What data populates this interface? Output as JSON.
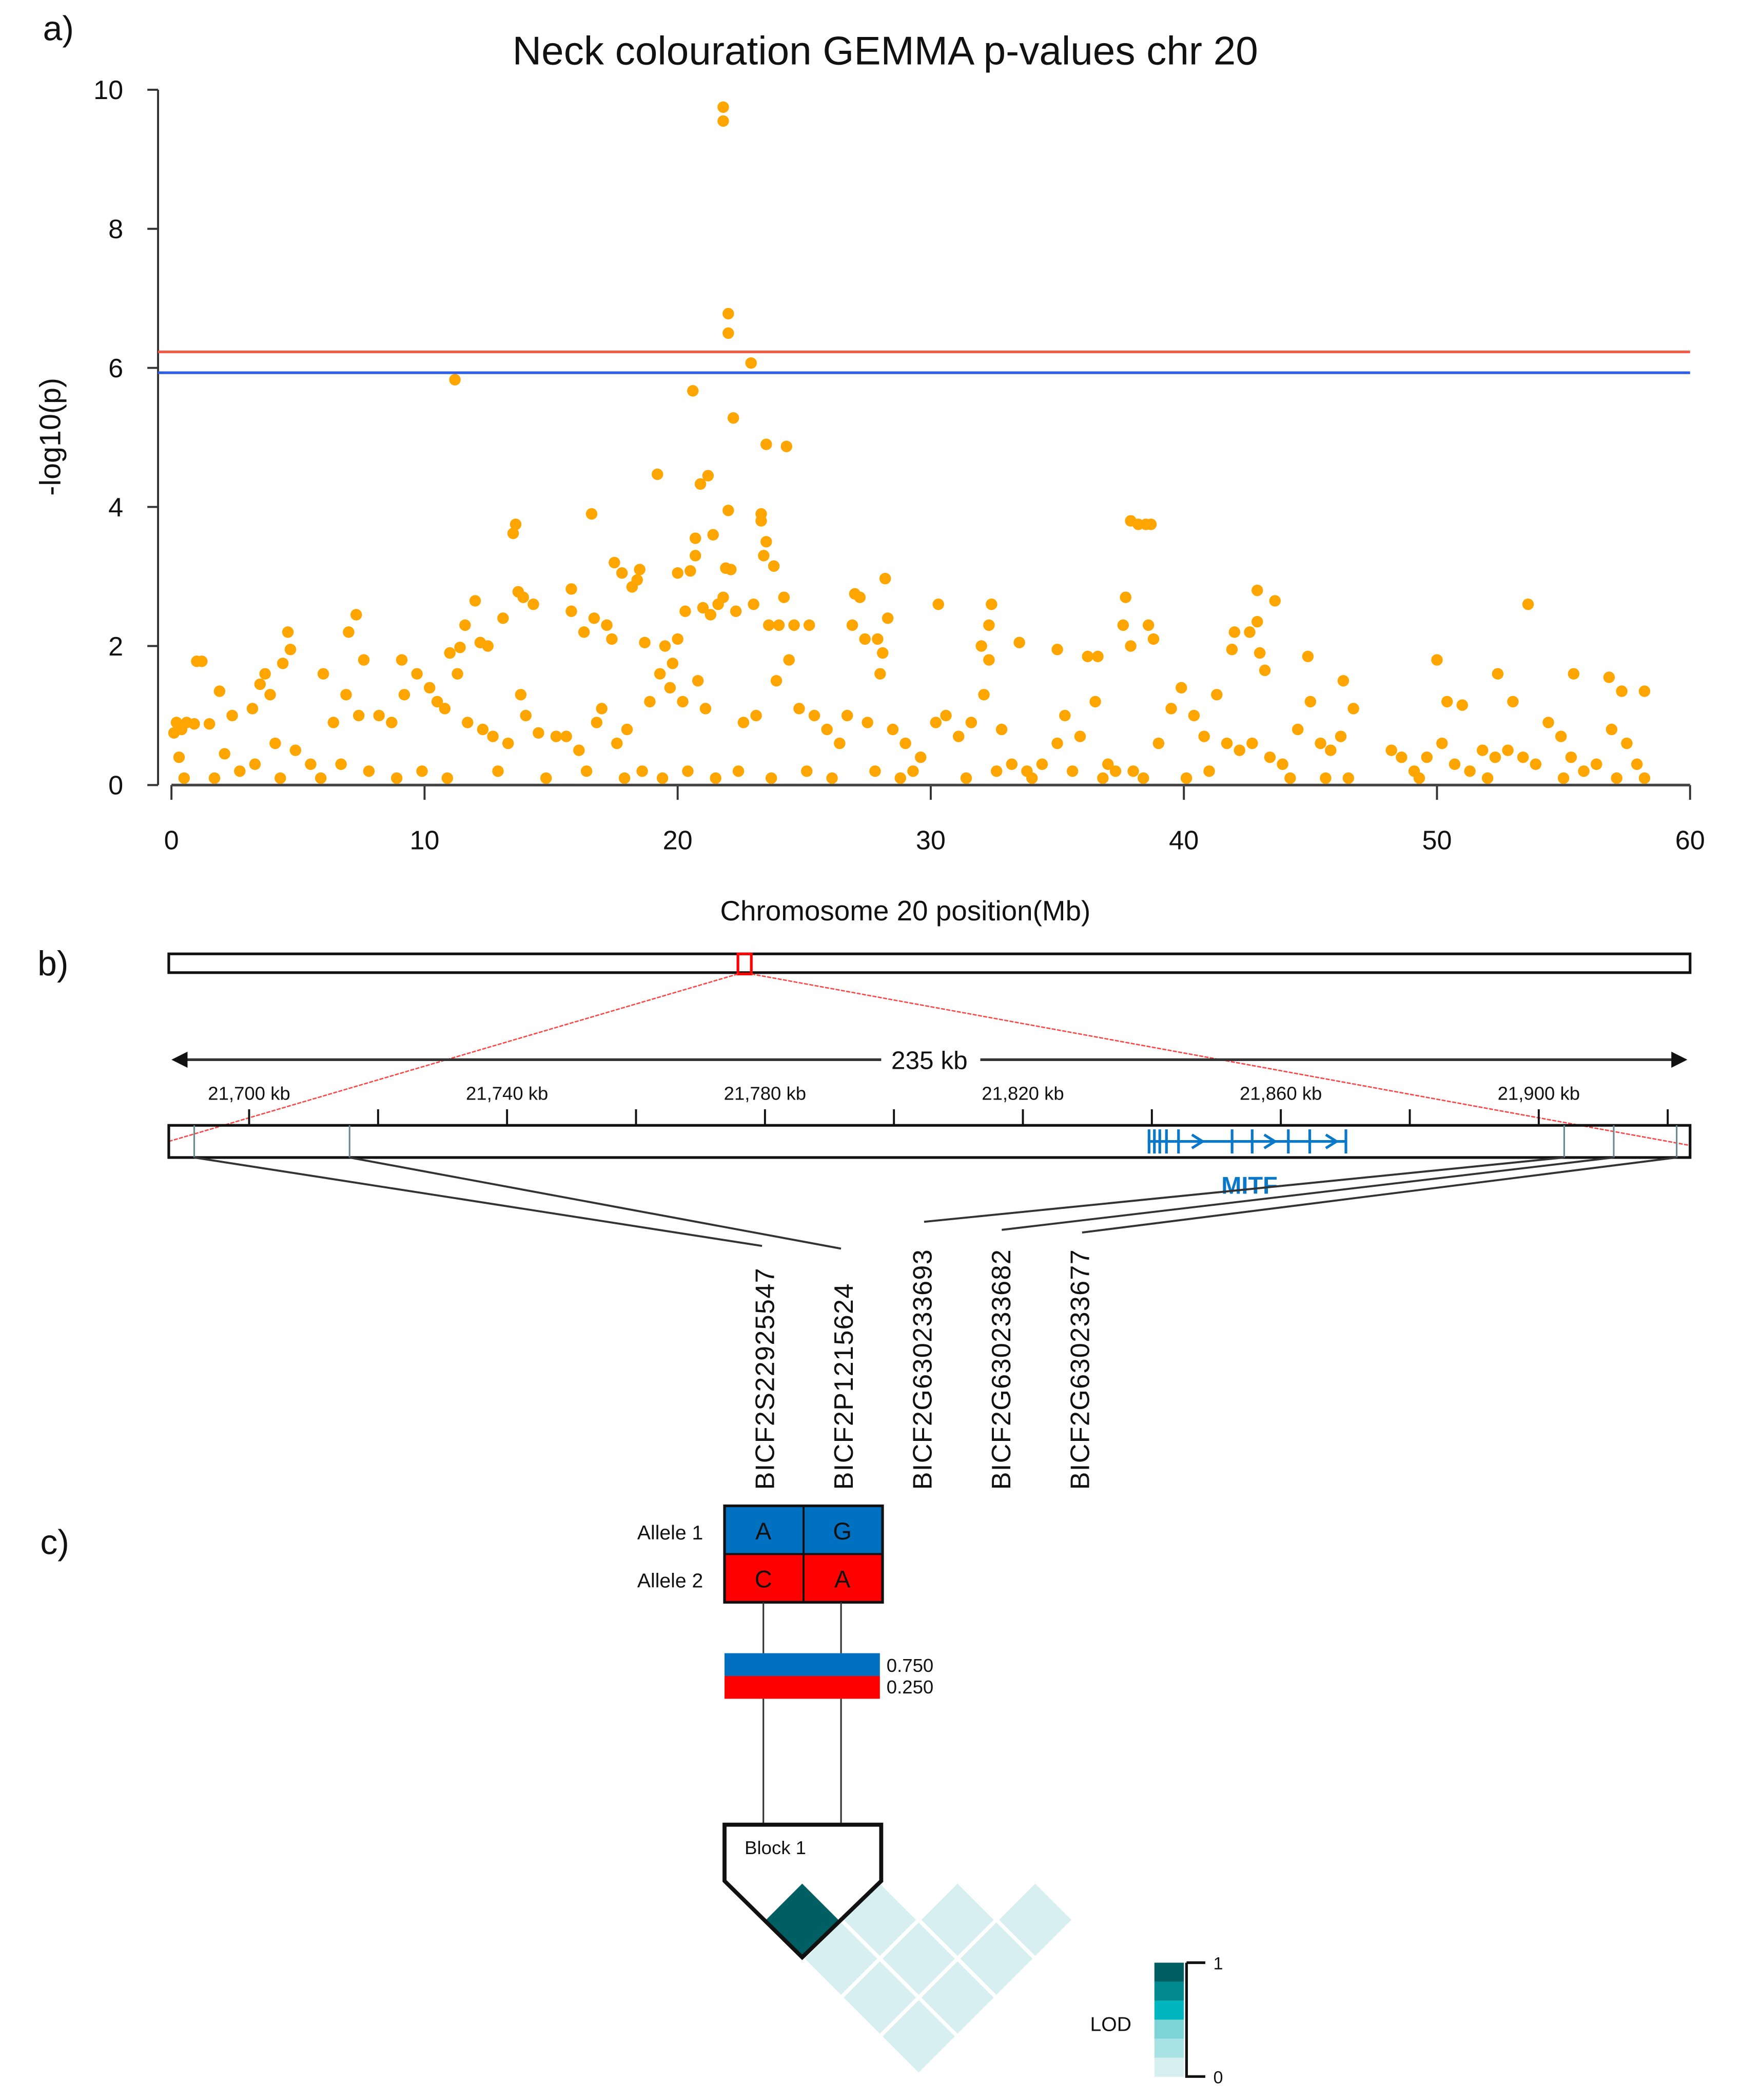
{
  "colors": {
    "points": "#ffa500",
    "red_line": "#f05a46",
    "blue_line": "#2f5fe8",
    "gene": "#0a78c8",
    "allele1": "#0070c0",
    "allele2": "#ff0000",
    "ld_dark": "#005f63",
    "ld_light": "#d7eff1"
  },
  "panels": {
    "a": "a)",
    "b": "b)",
    "c": "c)"
  },
  "chart_data": {
    "type": "scatter",
    "title": "Neck colouration GEMMA p-values chr 20",
    "xlabel": "Chromosome 20 position(Mb)",
    "ylabel": "-log10(p)",
    "xlim": [
      0,
      60
    ],
    "ylim": [
      0,
      10
    ],
    "xticks": [
      "0",
      "10",
      "20",
      "30",
      "40",
      "50",
      "60"
    ],
    "yticks": [
      "0",
      "2",
      "4",
      "6",
      "8",
      "10"
    ],
    "thresholds": [
      {
        "name": "red",
        "value": 6.23
      },
      {
        "name": "blue",
        "value": 5.93
      }
    ],
    "points": [
      [
        21.8,
        9.75
      ],
      [
        21.8,
        9.55
      ],
      [
        22.0,
        6.78
      ],
      [
        22.0,
        6.5
      ],
      [
        22.9,
        6.07
      ],
      [
        11.2,
        5.83
      ],
      [
        20.6,
        5.67
      ],
      [
        22.2,
        5.28
      ],
      [
        23.5,
        4.9
      ],
      [
        24.3,
        4.87
      ],
      [
        19.2,
        4.47
      ],
      [
        21.2,
        4.45
      ],
      [
        20.9,
        4.33
      ],
      [
        22.0,
        3.95
      ],
      [
        23.3,
        3.9
      ],
      [
        23.3,
        3.8
      ],
      [
        13.6,
        3.75
      ],
      [
        13.5,
        3.62
      ],
      [
        16.6,
        3.9
      ],
      [
        37.9,
        3.8
      ],
      [
        38.2,
        3.75
      ],
      [
        38.5,
        3.75
      ],
      [
        38.7,
        3.75
      ],
      [
        20.7,
        3.55
      ],
      [
        21.4,
        3.6
      ],
      [
        23.5,
        3.5
      ],
      [
        23.4,
        3.3
      ],
      [
        20.7,
        3.3
      ],
      [
        17.5,
        3.2
      ],
      [
        18.5,
        3.1
      ],
      [
        20.0,
        3.05
      ],
      [
        20.5,
        3.08
      ],
      [
        22.1,
        3.1
      ],
      [
        21.9,
        3.12
      ],
      [
        23.8,
        3.15
      ],
      [
        28.2,
        2.97
      ],
      [
        42.9,
        2.8
      ],
      [
        53.6,
        2.6
      ],
      [
        32.4,
        2.6
      ],
      [
        30.3,
        2.6
      ],
      [
        37.7,
        2.7
      ],
      [
        43.6,
        2.65
      ],
      [
        27.0,
        2.75
      ],
      [
        27.2,
        2.7
      ],
      [
        15.8,
        2.82
      ],
      [
        13.7,
        2.78
      ],
      [
        13.9,
        2.7
      ],
      [
        12.0,
        2.65
      ],
      [
        14.3,
        2.6
      ],
      [
        18.2,
        2.85
      ],
      [
        18.4,
        2.95
      ],
      [
        17.8,
        3.05
      ],
      [
        24.2,
        2.7
      ],
      [
        23.0,
        2.6
      ],
      [
        21.0,
        2.55
      ],
      [
        21.6,
        2.6
      ],
      [
        21.8,
        2.7
      ],
      [
        22.3,
        2.5
      ],
      [
        20.3,
        2.5
      ],
      [
        21.3,
        2.45
      ],
      [
        7.3,
        2.45
      ],
      [
        7.0,
        2.2
      ],
      [
        4.6,
        2.2
      ],
      [
        4.7,
        1.95
      ],
      [
        4.4,
        1.75
      ],
      [
        12.2,
        2.05
      ],
      [
        12.5,
        2.0
      ],
      [
        11.4,
        1.98
      ],
      [
        13.1,
        2.4
      ],
      [
        11.6,
        2.3
      ],
      [
        16.7,
        2.4
      ],
      [
        16.3,
        2.2
      ],
      [
        17.2,
        2.3
      ],
      [
        17.4,
        2.1
      ],
      [
        18.7,
        2.05
      ],
      [
        19.5,
        2.0
      ],
      [
        19.8,
        1.75
      ],
      [
        15.8,
        2.5
      ],
      [
        20.0,
        2.1
      ],
      [
        23.6,
        2.3
      ],
      [
        24.0,
        2.3
      ],
      [
        24.6,
        2.3
      ],
      [
        25.2,
        2.3
      ],
      [
        26.9,
        2.3
      ],
      [
        27.4,
        2.1
      ],
      [
        27.9,
        2.1
      ],
      [
        28.3,
        2.4
      ],
      [
        28.1,
        1.9
      ],
      [
        28.0,
        1.6
      ],
      [
        32.3,
        2.3
      ],
      [
        32.0,
        2.0
      ],
      [
        32.3,
        1.8
      ],
      [
        33.5,
        2.05
      ],
      [
        35.0,
        1.95
      ],
      [
        36.2,
        1.85
      ],
      [
        36.6,
        1.85
      ],
      [
        37.6,
        2.3
      ],
      [
        37.9,
        2.0
      ],
      [
        38.8,
        2.1
      ],
      [
        38.6,
        2.3
      ],
      [
        42.0,
        2.2
      ],
      [
        41.9,
        1.95
      ],
      [
        42.6,
        2.2
      ],
      [
        42.9,
        2.35
      ],
      [
        43.0,
        1.9
      ],
      [
        43.2,
        1.65
      ],
      [
        44.9,
        1.85
      ],
      [
        46.3,
        1.5
      ],
      [
        50.0,
        1.8
      ],
      [
        50.4,
        1.2
      ],
      [
        51.0,
        1.15
      ],
      [
        52.4,
        1.6
      ],
      [
        53.0,
        1.2
      ],
      [
        55.4,
        1.6
      ],
      [
        56.8,
        1.55
      ],
      [
        57.3,
        1.35
      ],
      [
        58.2,
        1.35
      ],
      [
        1.0,
        1.78
      ],
      [
        1.2,
        1.78
      ],
      [
        0.2,
        0.9
      ],
      [
        0.4,
        0.8
      ],
      [
        0.6,
        0.9
      ],
      [
        0.9,
        0.88
      ],
      [
        1.5,
        0.88
      ],
      [
        0.3,
        0.4
      ],
      [
        0.1,
        0.75
      ],
      [
        1.9,
        1.35
      ],
      [
        2.1,
        0.45
      ],
      [
        2.4,
        1.0
      ],
      [
        3.2,
        1.1
      ],
      [
        3.5,
        1.45
      ],
      [
        3.7,
        1.6
      ],
      [
        3.9,
        1.3
      ],
      [
        4.1,
        0.6
      ],
      [
        3.3,
        0.3
      ],
      [
        4.9,
        0.5
      ],
      [
        5.5,
        0.3
      ],
      [
        6.0,
        1.6
      ],
      [
        6.4,
        0.9
      ],
      [
        6.9,
        1.3
      ],
      [
        7.4,
        1.0
      ],
      [
        7.6,
        1.8
      ],
      [
        8.2,
        1.0
      ],
      [
        8.7,
        0.9
      ],
      [
        9.1,
        1.8
      ],
      [
        9.2,
        1.3
      ],
      [
        9.7,
        1.6
      ],
      [
        10.2,
        1.4
      ],
      [
        10.5,
        1.2
      ],
      [
        10.8,
        1.1
      ],
      [
        11.0,
        1.9
      ],
      [
        11.3,
        1.6
      ],
      [
        11.7,
        0.9
      ],
      [
        12.3,
        0.8
      ],
      [
        12.7,
        0.7
      ],
      [
        13.3,
        0.6
      ],
      [
        13.8,
        1.3
      ],
      [
        14.0,
        1.0
      ],
      [
        14.5,
        0.75
      ],
      [
        15.2,
        0.7
      ],
      [
        15.6,
        0.7
      ],
      [
        16.1,
        0.5
      ],
      [
        16.8,
        0.9
      ],
      [
        17.0,
        1.1
      ],
      [
        17.6,
        0.6
      ],
      [
        18.0,
        0.8
      ],
      [
        18.9,
        1.2
      ],
      [
        19.3,
        1.6
      ],
      [
        19.7,
        1.4
      ],
      [
        20.2,
        1.2
      ],
      [
        20.8,
        1.5
      ],
      [
        21.1,
        1.1
      ],
      [
        22.6,
        0.9
      ],
      [
        23.1,
        1.0
      ],
      [
        23.9,
        1.5
      ],
      [
        24.4,
        1.8
      ],
      [
        24.8,
        1.1
      ],
      [
        25.4,
        1.0
      ],
      [
        25.9,
        0.8
      ],
      [
        26.4,
        0.6
      ],
      [
        26.7,
        1.0
      ],
      [
        27.5,
        0.9
      ],
      [
        28.5,
        0.8
      ],
      [
        29.0,
        0.6
      ],
      [
        29.6,
        0.4
      ],
      [
        30.2,
        0.9
      ],
      [
        30.6,
        1.0
      ],
      [
        31.1,
        0.7
      ],
      [
        31.6,
        0.9
      ],
      [
        32.1,
        1.3
      ],
      [
        32.8,
        0.8
      ],
      [
        33.2,
        0.3
      ],
      [
        33.8,
        0.2
      ],
      [
        34.4,
        0.3
      ],
      [
        35.0,
        0.6
      ],
      [
        35.3,
        1.0
      ],
      [
        35.9,
        0.7
      ],
      [
        36.5,
        1.2
      ],
      [
        37.0,
        0.3
      ],
      [
        37.3,
        0.2
      ],
      [
        38.0,
        0.2
      ],
      [
        39.0,
        0.6
      ],
      [
        39.5,
        1.1
      ],
      [
        39.9,
        1.4
      ],
      [
        40.4,
        1.0
      ],
      [
        40.8,
        0.7
      ],
      [
        41.3,
        1.3
      ],
      [
        41.7,
        0.6
      ],
      [
        42.2,
        0.5
      ],
      [
        42.7,
        0.6
      ],
      [
        43.4,
        0.4
      ],
      [
        43.9,
        0.3
      ],
      [
        44.5,
        0.8
      ],
      [
        45.0,
        1.2
      ],
      [
        45.4,
        0.6
      ],
      [
        45.8,
        0.5
      ],
      [
        46.2,
        0.7
      ],
      [
        46.7,
        1.1
      ],
      [
        48.2,
        0.5
      ],
      [
        48.6,
        0.4
      ],
      [
        49.1,
        0.2
      ],
      [
        49.6,
        0.4
      ],
      [
        50.2,
        0.6
      ],
      [
        50.7,
        0.3
      ],
      [
        51.3,
        0.2
      ],
      [
        51.8,
        0.5
      ],
      [
        52.3,
        0.4
      ],
      [
        52.8,
        0.5
      ],
      [
        53.4,
        0.4
      ],
      [
        53.9,
        0.3
      ],
      [
        54.4,
        0.9
      ],
      [
        54.9,
        0.7
      ],
      [
        55.3,
        0.4
      ],
      [
        55.8,
        0.2
      ],
      [
        56.3,
        0.3
      ],
      [
        56.9,
        0.8
      ],
      [
        57.5,
        0.6
      ],
      [
        57.9,
        0.3
      ],
      [
        58.2,
        0.1
      ],
      [
        0.5,
        0.1
      ],
      [
        1.7,
        0.1
      ],
      [
        2.7,
        0.2
      ],
      [
        4.3,
        0.1
      ],
      [
        5.9,
        0.1
      ],
      [
        6.7,
        0.3
      ],
      [
        7.8,
        0.2
      ],
      [
        8.9,
        0.1
      ],
      [
        9.9,
        0.2
      ],
      [
        10.9,
        0.1
      ],
      [
        12.9,
        0.2
      ],
      [
        14.8,
        0.1
      ],
      [
        16.4,
        0.2
      ],
      [
        17.9,
        0.1
      ],
      [
        18.6,
        0.2
      ],
      [
        19.4,
        0.1
      ],
      [
        20.4,
        0.2
      ],
      [
        21.5,
        0.1
      ],
      [
        22.4,
        0.2
      ],
      [
        23.7,
        0.1
      ],
      [
        25.1,
        0.2
      ],
      [
        26.1,
        0.1
      ],
      [
        27.8,
        0.2
      ],
      [
        28.8,
        0.1
      ],
      [
        29.3,
        0.2
      ],
      [
        31.4,
        0.1
      ],
      [
        32.6,
        0.2
      ],
      [
        34.0,
        0.1
      ],
      [
        35.6,
        0.2
      ],
      [
        36.8,
        0.1
      ],
      [
        38.4,
        0.1
      ],
      [
        40.1,
        0.1
      ],
      [
        41.0,
        0.2
      ],
      [
        44.2,
        0.1
      ],
      [
        45.6,
        0.1
      ],
      [
        46.5,
        0.1
      ],
      [
        49.3,
        0.1
      ],
      [
        52.0,
        0.1
      ],
      [
        55.0,
        0.1
      ],
      [
        57.1,
        0.1
      ]
    ]
  },
  "region": {
    "span_label": "235 kb",
    "tick_labels": [
      "21,700 kb",
      "21,740 kb",
      "21,780 kb",
      "21,820 kb",
      "21,860 kb",
      "21,900 kb"
    ],
    "gene_label": "MITF",
    "snps": [
      "BICF2S22925547",
      "BICF2P1215624",
      "BICF2G630233693",
      "BICF2G630233682",
      "BICF2G630233677"
    ]
  },
  "haplotype": {
    "allele1_label": "Allele 1",
    "allele2_label": "Allele 2",
    "allele1": [
      "A",
      "G"
    ],
    "allele2": [
      "C",
      "A"
    ],
    "freq1": "0.750",
    "freq2": "0.250",
    "block_label": "Block 1",
    "lod_label": "LOD",
    "lod_max": "1",
    "lod_min": "0"
  }
}
